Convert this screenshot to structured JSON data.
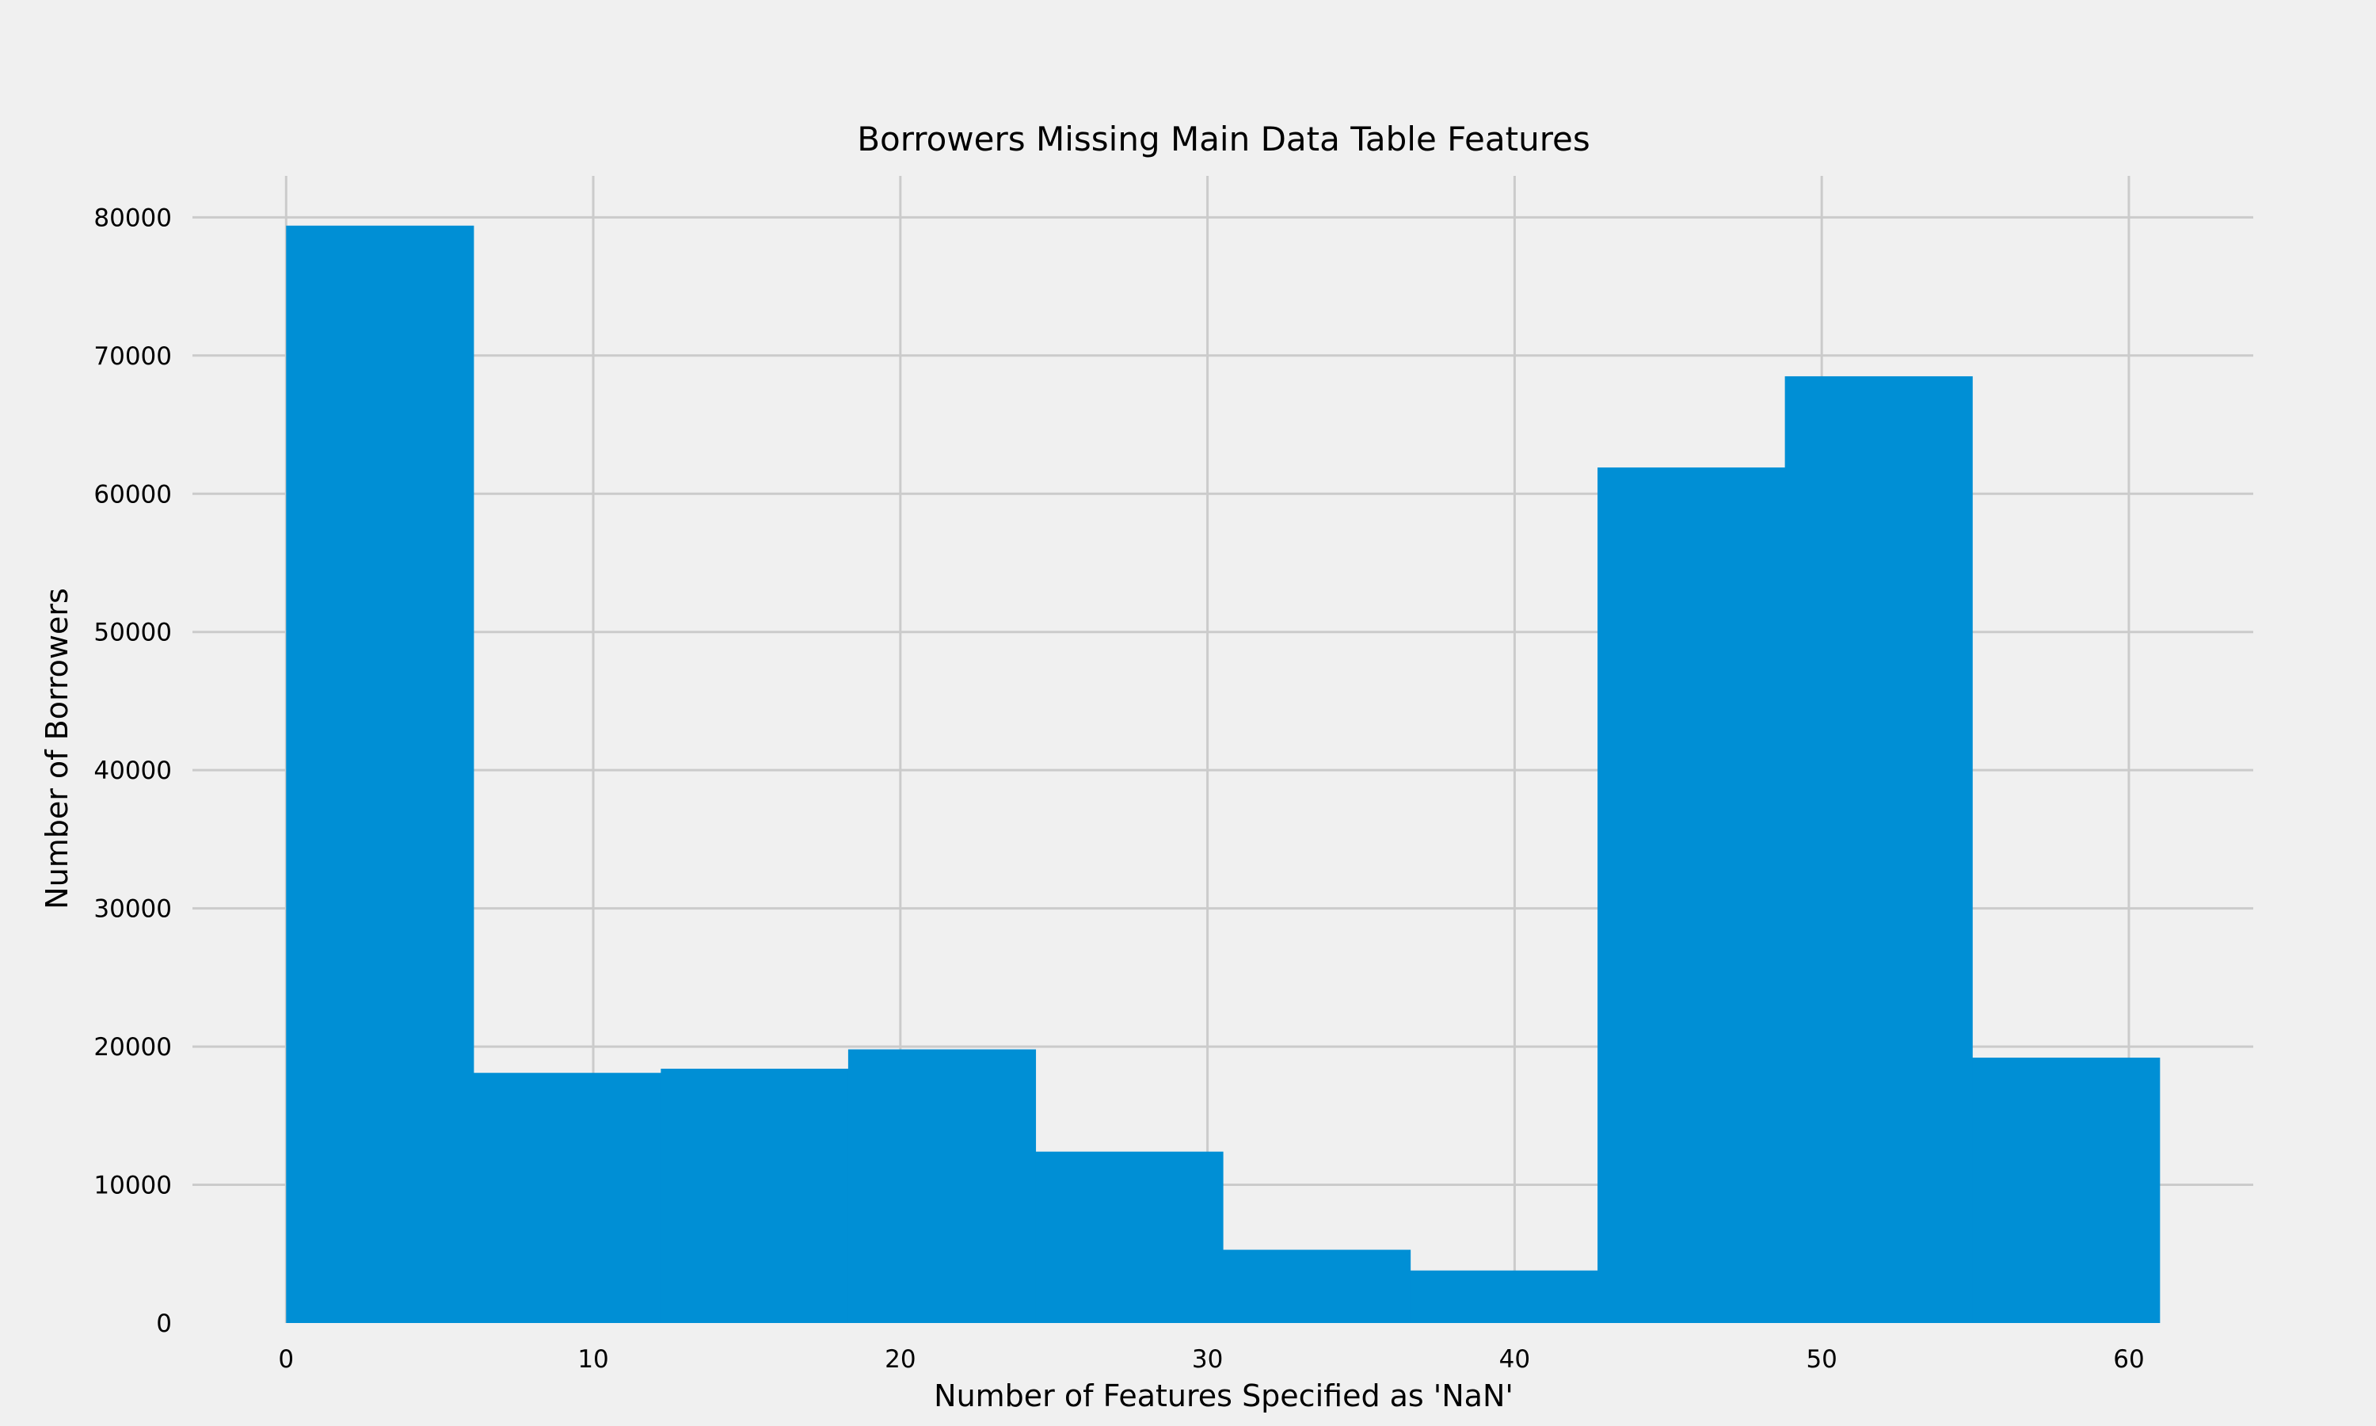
{
  "chart_data": {
    "type": "bar",
    "title": "Borrowers Missing Main Data Table Features",
    "xlabel": "Number of Features Specified as 'NaN'",
    "ylabel": "Number of Borrowers",
    "xlim": [
      -3.05,
      64.05
    ],
    "ylim": [
      0,
      83000
    ],
    "x_ticks": [
      0,
      10,
      20,
      30,
      40,
      50,
      60
    ],
    "y_ticks": [
      0,
      10000,
      20000,
      30000,
      40000,
      50000,
      60000,
      70000,
      80000
    ],
    "bin_edges": [
      0,
      6.1,
      12.2,
      18.3,
      24.4,
      30.5,
      36.6,
      42.7,
      48.8,
      54.9,
      61
    ],
    "values": [
      79400,
      18100,
      18400,
      19800,
      12400,
      5300,
      3800,
      61900,
      68500,
      19200
    ],
    "grid": true,
    "legend": "none",
    "colors": {
      "bar": "#008fd5",
      "grid": "#cbcbcb",
      "background": "#f0f0f0"
    }
  }
}
